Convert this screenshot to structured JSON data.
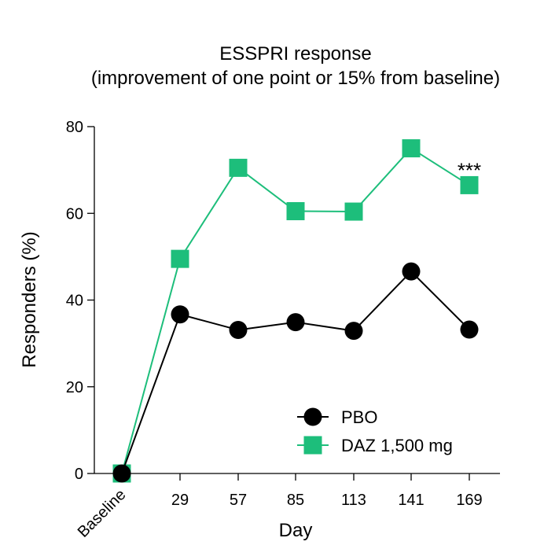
{
  "chart_data": {
    "type": "line",
    "title": "ESSPRI response",
    "subtitle": "(improvement of one point or 15% from baseline)",
    "xlabel": "Day",
    "ylabel": "Responders (%)",
    "categories": [
      "Baseline",
      "29",
      "57",
      "85",
      "113",
      "141",
      "169"
    ],
    "ylim": [
      0,
      80
    ],
    "yticks": [
      "0",
      "20",
      "40",
      "60",
      "80"
    ],
    "grid": false,
    "legend_position": "bottom-right",
    "series": [
      {
        "name": "PBO",
        "marker": "circle",
        "color": "#000000",
        "values": [
          0,
          36.7,
          33.1,
          34.9,
          32.9,
          46.6,
          33.2
        ]
      },
      {
        "name": "DAZ 1,500 mg",
        "marker": "square",
        "color": "#1dbe7b",
        "values": [
          0,
          49.5,
          70.5,
          60.5,
          60.4,
          75.0,
          66.5
        ]
      }
    ],
    "annotations": [
      {
        "text": "***",
        "category": "169",
        "series": "DAZ 1,500 mg"
      }
    ]
  }
}
